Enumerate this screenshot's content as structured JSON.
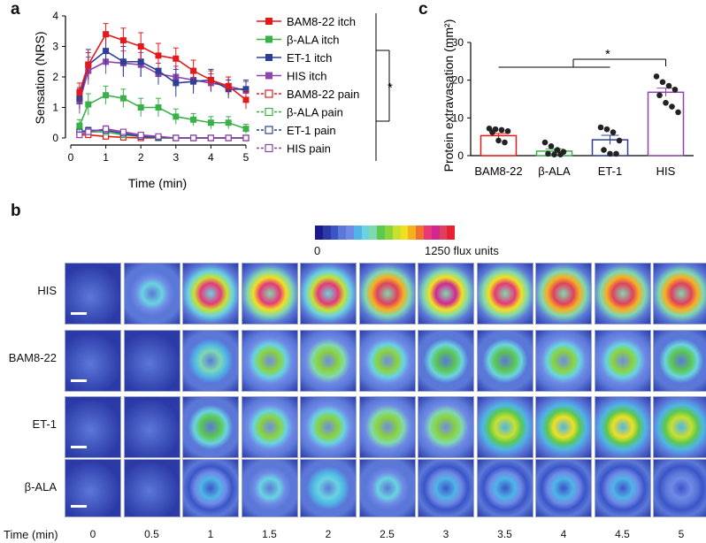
{
  "panel_a": {
    "letter": "a",
    "legend": [
      "BAM8-22 itch",
      "β-ALA itch",
      "ET-1 itch",
      "HIS itch",
      "BAM8-22 pain",
      "β-ALA pain",
      "ET-1 pain",
      "HIS pain"
    ],
    "significance": "*"
  },
  "panel_b": {
    "letter": "b",
    "colorbar_min": "0",
    "colorbar_max": "1250 flux units",
    "colorbar_colors": [
      "#1a1a8c",
      "#2c3aa8",
      "#3b55c8",
      "#5b78d8",
      "#6f8ae6",
      "#4fb5e6",
      "#6ad3e0",
      "#80d8b0",
      "#5bc850",
      "#8ad43c",
      "#c8e030",
      "#f0e020",
      "#f5b020",
      "#f07030",
      "#e83878",
      "#d02890",
      "#e04060",
      "#e82030"
    ],
    "row_labels": [
      "HIS",
      "BAM8-22",
      "ET-1",
      "β-ALA"
    ],
    "time_axis_label": "Time (min)",
    "time_points": [
      "0",
      "0.5",
      "1",
      "1.5",
      "2",
      "2.5",
      "3",
      "3.5",
      "4",
      "4.5",
      "5"
    ],
    "intensity": {
      "HIS": [
        0.02,
        0.35,
        0.8,
        0.85,
        0.8,
        0.92,
        0.88,
        0.85,
        0.95,
        0.95,
        0.95
      ],
      "BAM8-22": [
        0.02,
        0.08,
        0.4,
        0.5,
        0.55,
        0.5,
        0.45,
        0.45,
        0.5,
        0.5,
        0.45
      ],
      "ET-1": [
        0.02,
        0.05,
        0.45,
        0.5,
        0.5,
        0.55,
        0.55,
        0.6,
        0.65,
        0.62,
        0.6
      ],
      "β-ALA": [
        0.02,
        0.05,
        0.3,
        0.35,
        0.38,
        0.35,
        0.3,
        0.3,
        0.3,
        0.28,
        0.25
      ]
    }
  },
  "panel_c": {
    "letter": "c",
    "significance": "*"
  },
  "chart_data": [
    {
      "type": "line",
      "title": "",
      "xlabel": "Time (min)",
      "ylabel": "Sensation (NRS)",
      "xlim": [
        0,
        5
      ],
      "ylim": [
        0,
        4
      ],
      "x": [
        0.25,
        0.5,
        1,
        1.5,
        2,
        2.5,
        3,
        3.5,
        4,
        4.5,
        5
      ],
      "xticks": [
        "0",
        "1",
        "2",
        "3",
        "4",
        "5"
      ],
      "yticks": [
        "0",
        "1",
        "2",
        "3",
        "4"
      ],
      "series": [
        {
          "name": "BAM8-22 itch",
          "color": "#e31a1c",
          "marker": "filled",
          "values": [
            1.5,
            2.4,
            3.4,
            3.2,
            3.0,
            2.7,
            2.6,
            2.2,
            1.9,
            1.7,
            1.25
          ],
          "errors": [
            0.3,
            0.4,
            0.35,
            0.4,
            0.45,
            0.4,
            0.35,
            0.35,
            0.3,
            0.3,
            0.3
          ]
        },
        {
          "name": "β-ALA itch",
          "color": "#3ab04a",
          "marker": "filled",
          "values": [
            0.4,
            1.1,
            1.4,
            1.3,
            1.0,
            1.0,
            0.7,
            0.6,
            0.5,
            0.5,
            0.3
          ],
          "errors": [
            0.2,
            0.35,
            0.3,
            0.3,
            0.3,
            0.3,
            0.25,
            0.2,
            0.2,
            0.2,
            0.15
          ]
        },
        {
          "name": "ET-1 itch",
          "color": "#2c3e95",
          "marker": "filled",
          "values": [
            1.3,
            2.4,
            2.85,
            2.5,
            2.5,
            2.2,
            1.8,
            1.85,
            1.9,
            1.6,
            1.6
          ],
          "errors": [
            0.35,
            0.5,
            0.5,
            0.5,
            0.5,
            0.45,
            0.45,
            0.4,
            0.35,
            0.3,
            0.3
          ]
        },
        {
          "name": "HIS itch",
          "color": "#8e44ad",
          "marker": "filled",
          "values": [
            1.2,
            2.2,
            2.5,
            2.45,
            2.4,
            2.1,
            2.0,
            1.9,
            1.8,
            1.7,
            1.55
          ],
          "errors": [
            0.4,
            0.45,
            0.4,
            0.4,
            0.4,
            0.35,
            0.35,
            0.35,
            0.3,
            0.3,
            0.3
          ]
        },
        {
          "name": "BAM8-22 pain",
          "color": "#e31a1c",
          "marker": "open",
          "values": [
            0.1,
            0.1,
            0.05,
            0.02,
            0.0,
            0.0,
            0.0,
            0.0,
            0.0,
            0.0,
            0.0
          ],
          "errors": [
            0.05,
            0.05,
            0.05,
            0.02,
            0.02,
            0.02,
            0.02,
            0.02,
            0.02,
            0.02,
            0.02
          ]
        },
        {
          "name": "β-ALA pain",
          "color": "#3ab04a",
          "marker": "open",
          "values": [
            0.2,
            0.2,
            0.2,
            0.1,
            0.05,
            0.0,
            0.0,
            0.0,
            0.0,
            0.0,
            0.0
          ],
          "errors": [
            0.1,
            0.1,
            0.1,
            0.05,
            0.05,
            0.02,
            0.02,
            0.02,
            0.02,
            0.02,
            0.02
          ]
        },
        {
          "name": "ET-1 pain",
          "color": "#2c3e95",
          "marker": "open",
          "values": [
            0.2,
            0.25,
            0.25,
            0.15,
            0.05,
            0.02,
            0.0,
            0.0,
            0.0,
            0.0,
            0.0
          ],
          "errors": [
            0.1,
            0.1,
            0.1,
            0.05,
            0.05,
            0.02,
            0.02,
            0.02,
            0.02,
            0.02,
            0.02
          ]
        },
        {
          "name": "HIS pain",
          "color": "#8e44ad",
          "marker": "open",
          "values": [
            0.1,
            0.2,
            0.3,
            0.2,
            0.1,
            0.05,
            0.0,
            0.0,
            0.0,
            0.0,
            0.0
          ],
          "errors": [
            0.1,
            0.1,
            0.1,
            0.05,
            0.05,
            0.02,
            0.02,
            0.02,
            0.02,
            0.02,
            0.02
          ]
        }
      ]
    },
    {
      "type": "bar",
      "title": "",
      "xlabel": "",
      "ylabel": "Protein extravasation (mm²)",
      "ylim": [
        0,
        30
      ],
      "yticks": [
        "0",
        "10",
        "20",
        "30"
      ],
      "categories": [
        "BAM8-22",
        "β-ALA",
        "ET-1",
        "HIS"
      ],
      "colors": [
        "#e31a1c",
        "#3ab04a",
        "#2c3e95",
        "#8e44ad"
      ],
      "values": [
        5.3,
        1.2,
        4.2,
        16.8
      ],
      "errors": [
        0.6,
        0.6,
        1.2,
        1.1
      ],
      "points": [
        [
          7.2,
          7.0,
          6.8,
          6.5,
          6.2,
          4.0,
          3.5
        ],
        [
          3.5,
          2.5,
          1.5,
          1.0,
          0.5,
          0.3,
          0.3
        ],
        [
          7.5,
          7.0,
          6.2,
          4.0,
          1.5,
          0.5,
          0.5
        ],
        [
          21.0,
          19.5,
          18.5,
          17.5,
          16.0,
          14.0,
          13.0,
          11.5
        ]
      ]
    }
  ]
}
